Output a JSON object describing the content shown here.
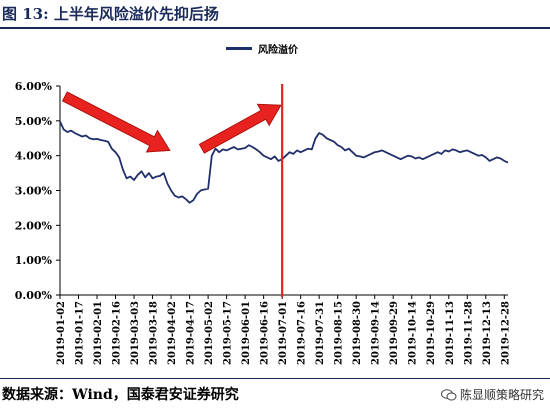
{
  "title": "图 13:  上半年风险溢价先抑后扬",
  "source": "数据来源：Wind，国泰君安证券研究",
  "watermark": {
    "text": "陈显顺策略研究",
    "icon": "wechat-icon"
  },
  "colors": {
    "series": "#1f2f6b",
    "arrow": "#e8231f",
    "vline": "#e8231f",
    "title": "#1a2a5a"
  },
  "chart_data": {
    "type": "line",
    "title": "",
    "xlabel": "",
    "ylabel": "",
    "legend_position": "top-center",
    "grid": false,
    "ylim": [
      0,
      0.06
    ],
    "y_ticks": [
      "6.00%",
      "5.00%",
      "4.00%",
      "3.00%",
      "2.00%",
      "1.00%",
      "0.00%"
    ],
    "x_ticks": [
      "2019-01-02",
      "2019-01-17",
      "2019-02-01",
      "2019-02-16",
      "2019-03-03",
      "2019-03-18",
      "2019-04-02",
      "2019-04-17",
      "2019-05-02",
      "2019-05-17",
      "2019-06-01",
      "2019-06-16",
      "2019-07-01",
      "2019-07-16",
      "2019-07-31",
      "2019-08-15",
      "2019-08-30",
      "2019-09-14",
      "2019-09-29",
      "2019-10-14",
      "2019-10-29",
      "2019-11-13",
      "2019-11-28",
      "2019-12-13",
      "2019-12-28"
    ],
    "series": [
      {
        "name": "风险溢价",
        "points": [
          [
            "2019-01-02",
            0.0498
          ],
          [
            "2019-01-05",
            0.0475
          ],
          [
            "2019-01-08",
            0.0468
          ],
          [
            "2019-01-11",
            0.0472
          ],
          [
            "2019-01-14",
            0.0465
          ],
          [
            "2019-01-17",
            0.046
          ],
          [
            "2019-01-20",
            0.0455
          ],
          [
            "2019-01-23",
            0.0458
          ],
          [
            "2019-01-26",
            0.045
          ],
          [
            "2019-01-29",
            0.0447
          ],
          [
            "2019-02-01",
            0.0448
          ],
          [
            "2019-02-04",
            0.0445
          ],
          [
            "2019-02-07",
            0.0443
          ],
          [
            "2019-02-10",
            0.044
          ],
          [
            "2019-02-13",
            0.042
          ],
          [
            "2019-02-16",
            0.041
          ],
          [
            "2019-02-19",
            0.0395
          ],
          [
            "2019-02-22",
            0.036
          ],
          [
            "2019-02-25",
            0.0335
          ],
          [
            "2019-02-28",
            0.034
          ],
          [
            "2019-03-03",
            0.033
          ],
          [
            "2019-03-06",
            0.0345
          ],
          [
            "2019-03-09",
            0.0355
          ],
          [
            "2019-03-12",
            0.0338
          ],
          [
            "2019-03-15",
            0.035
          ],
          [
            "2019-03-18",
            0.0335
          ],
          [
            "2019-03-21",
            0.034
          ],
          [
            "2019-03-24",
            0.0342
          ],
          [
            "2019-03-27",
            0.035
          ],
          [
            "2019-03-30",
            0.032
          ],
          [
            "2019-04-02",
            0.03
          ],
          [
            "2019-04-05",
            0.0285
          ],
          [
            "2019-04-08",
            0.028
          ],
          [
            "2019-04-11",
            0.0283
          ],
          [
            "2019-04-14",
            0.0275
          ],
          [
            "2019-04-17",
            0.0265
          ],
          [
            "2019-04-20",
            0.0272
          ],
          [
            "2019-04-23",
            0.029
          ],
          [
            "2019-04-26",
            0.03
          ],
          [
            "2019-04-29",
            0.0303
          ],
          [
            "2019-05-02",
            0.0305
          ],
          [
            "2019-05-05",
            0.04
          ],
          [
            "2019-05-08",
            0.042
          ],
          [
            "2019-05-11",
            0.041
          ],
          [
            "2019-05-14",
            0.0418
          ],
          [
            "2019-05-17",
            0.0415
          ],
          [
            "2019-05-20",
            0.042
          ],
          [
            "2019-05-23",
            0.0425
          ],
          [
            "2019-05-26",
            0.0418
          ],
          [
            "2019-05-29",
            0.042
          ],
          [
            "2019-06-01",
            0.0422
          ],
          [
            "2019-06-04",
            0.043
          ],
          [
            "2019-06-07",
            0.0425
          ],
          [
            "2019-06-10",
            0.0418
          ],
          [
            "2019-06-13",
            0.041
          ],
          [
            "2019-06-16",
            0.04
          ],
          [
            "2019-06-19",
            0.0395
          ],
          [
            "2019-06-22",
            0.039
          ],
          [
            "2019-06-25",
            0.0398
          ],
          [
            "2019-06-28",
            0.0385
          ],
          [
            "2019-07-01",
            0.039
          ],
          [
            "2019-07-04",
            0.04
          ],
          [
            "2019-07-07",
            0.041
          ],
          [
            "2019-07-10",
            0.0405
          ],
          [
            "2019-07-13",
            0.0415
          ],
          [
            "2019-07-16",
            0.041
          ],
          [
            "2019-07-19",
            0.0415
          ],
          [
            "2019-07-22",
            0.042
          ],
          [
            "2019-07-25",
            0.0418
          ],
          [
            "2019-07-28",
            0.045
          ],
          [
            "2019-07-31",
            0.0465
          ],
          [
            "2019-08-03",
            0.046
          ],
          [
            "2019-08-06",
            0.045
          ],
          [
            "2019-08-09",
            0.0445
          ],
          [
            "2019-08-12",
            0.044
          ],
          [
            "2019-08-15",
            0.043
          ],
          [
            "2019-08-18",
            0.0425
          ],
          [
            "2019-08-21",
            0.0415
          ],
          [
            "2019-08-24",
            0.042
          ],
          [
            "2019-08-27",
            0.041
          ],
          [
            "2019-08-30",
            0.04
          ],
          [
            "2019-09-02",
            0.0398
          ],
          [
            "2019-09-05",
            0.0395
          ],
          [
            "2019-09-08",
            0.04
          ],
          [
            "2019-09-11",
            0.0405
          ],
          [
            "2019-09-14",
            0.041
          ],
          [
            "2019-09-17",
            0.0412
          ],
          [
            "2019-09-20",
            0.0415
          ],
          [
            "2019-09-23",
            0.041
          ],
          [
            "2019-09-26",
            0.0405
          ],
          [
            "2019-09-29",
            0.04
          ],
          [
            "2019-10-02",
            0.0395
          ],
          [
            "2019-10-05",
            0.039
          ],
          [
            "2019-10-08",
            0.0395
          ],
          [
            "2019-10-11",
            0.04
          ],
          [
            "2019-10-14",
            0.0398
          ],
          [
            "2019-10-17",
            0.0392
          ],
          [
            "2019-10-20",
            0.0395
          ],
          [
            "2019-10-23",
            0.039
          ],
          [
            "2019-10-26",
            0.0395
          ],
          [
            "2019-10-29",
            0.04
          ],
          [
            "2019-11-01",
            0.0405
          ],
          [
            "2019-11-04",
            0.041
          ],
          [
            "2019-11-07",
            0.0405
          ],
          [
            "2019-11-10",
            0.0415
          ],
          [
            "2019-11-13",
            0.0412
          ],
          [
            "2019-11-16",
            0.0418
          ],
          [
            "2019-11-19",
            0.0415
          ],
          [
            "2019-11-22",
            0.041
          ],
          [
            "2019-11-25",
            0.0413
          ],
          [
            "2019-11-28",
            0.0415
          ],
          [
            "2019-12-01",
            0.041
          ],
          [
            "2019-12-04",
            0.0405
          ],
          [
            "2019-12-07",
            0.04
          ],
          [
            "2019-12-10",
            0.0402
          ],
          [
            "2019-12-13",
            0.0395
          ],
          [
            "2019-12-16",
            0.0385
          ],
          [
            "2019-12-19",
            0.039
          ],
          [
            "2019-12-22",
            0.0395
          ],
          [
            "2019-12-25",
            0.0392
          ],
          [
            "2019-12-28",
            0.0385
          ],
          [
            "2019-12-31",
            0.038
          ]
        ]
      }
    ],
    "annotations": [
      {
        "type": "arrow",
        "direction": "down-right",
        "from": [
          "2019-01-06",
          0.057
        ],
        "to": [
          "2019-04-01",
          0.0415
        ]
      },
      {
        "type": "arrow",
        "direction": "up-right",
        "from": [
          "2019-04-27",
          0.042
        ],
        "to": [
          "2019-06-30",
          0.0545
        ]
      },
      {
        "type": "vline",
        "x": "2019-07-01"
      }
    ]
  }
}
